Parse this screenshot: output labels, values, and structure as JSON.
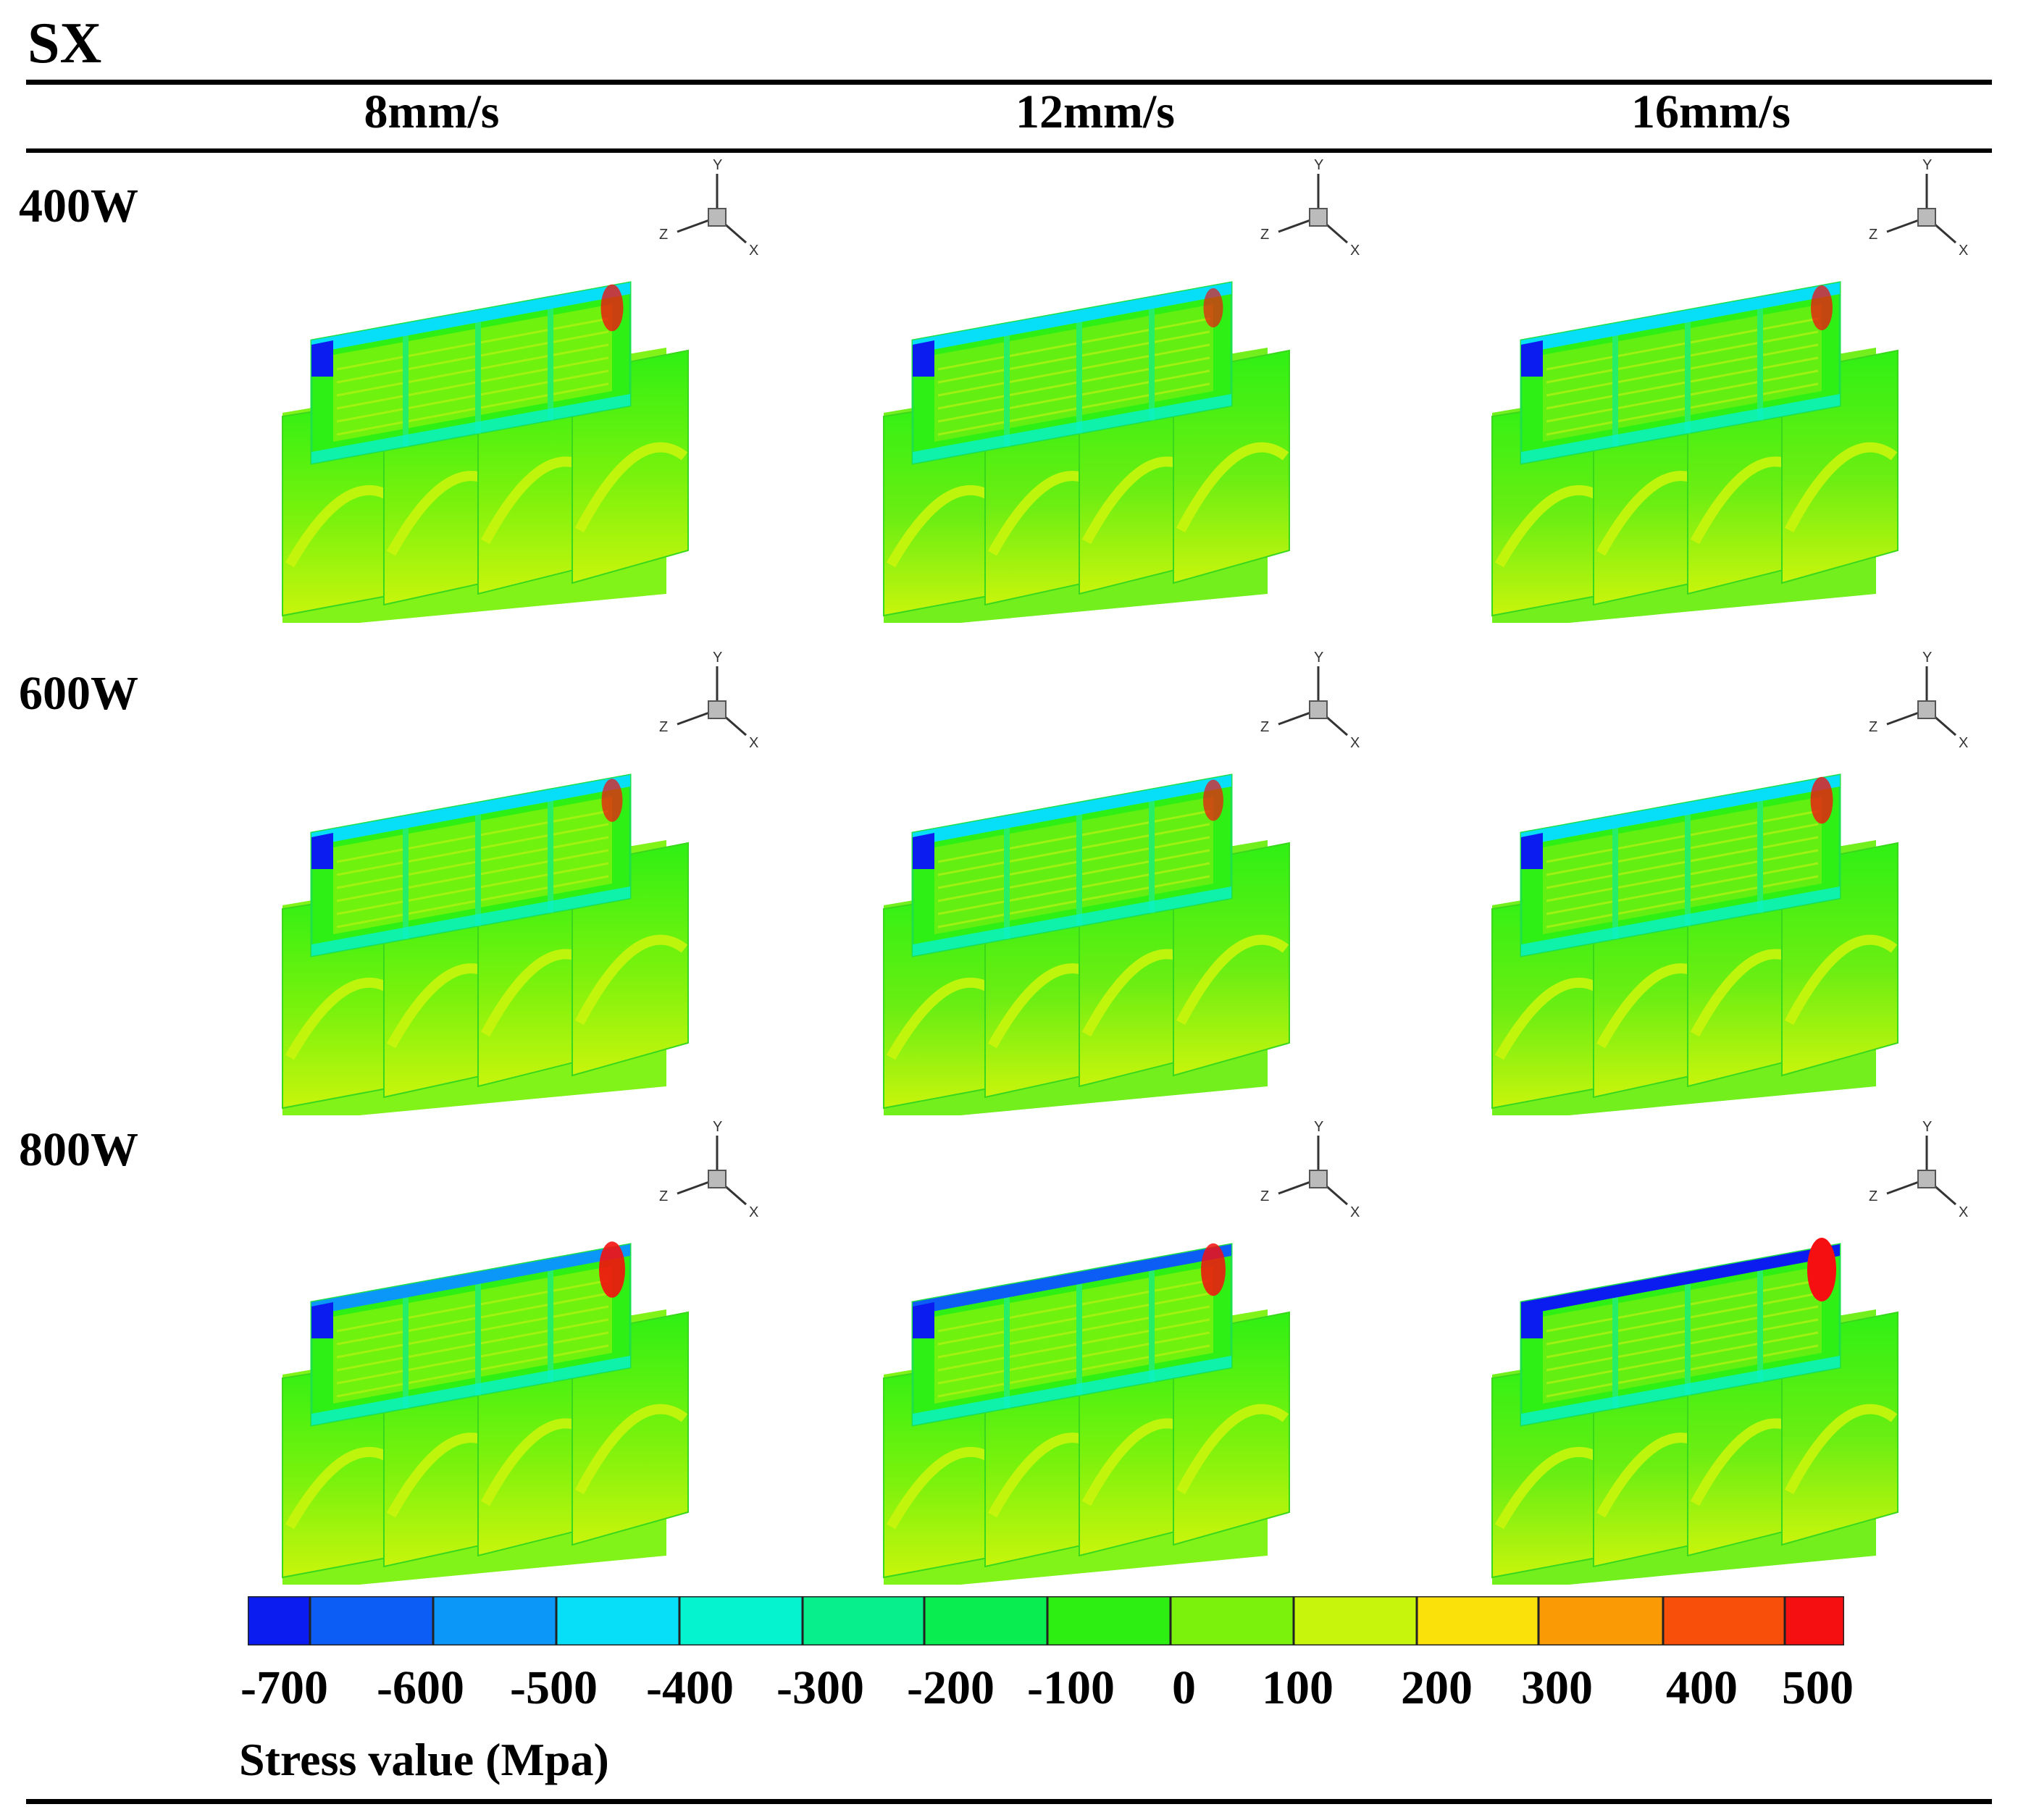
{
  "figure_title": "SX",
  "columns": [
    {
      "label": "8mm/s"
    },
    {
      "label": "12mm/s"
    },
    {
      "label": "16mm/s"
    }
  ],
  "rows": [
    {
      "label": "400W"
    },
    {
      "label": "600W"
    },
    {
      "label": "800W"
    }
  ],
  "axis_triad": {
    "x": "X",
    "y": "Y",
    "z": "Z"
  },
  "colorbar": {
    "title": "Stress value (Mpa)",
    "tick_labels": [
      "-700",
      "-600",
      "-500",
      "-400",
      "-300",
      "-200",
      "-100",
      "0",
      "100",
      "200",
      "300",
      "400",
      "500"
    ],
    "colors": [
      "#0b1cf0",
      "#0c5cf6",
      "#0a97f8",
      "#07def7",
      "#06f3cf",
      "#06ef8c",
      "#09ed50",
      "#2eef12",
      "#7af20c",
      "#c8f50c",
      "#fae109",
      "#fa9b05",
      "#f8500a",
      "#f50f10"
    ]
  },
  "cells": [
    [
      {
        "frame": "#2ff014",
        "base": "#7af20c",
        "lower": "#c8f50c",
        "top": "#07def7",
        "hot": "#f50f10",
        "cold": "#0b1cf0",
        "hot_intensity": 0.55
      },
      {
        "frame": "#2ff014",
        "base": "#6cee12",
        "lower": "#c8f50c",
        "top": "#07def7",
        "hot": "#f50f10",
        "cold": "#0b1cf0",
        "hot_intensity": 0.35
      },
      {
        "frame": "#2ff014",
        "base": "#6cee12",
        "lower": "#c8f50c",
        "top": "#07def7",
        "hot": "#f50f10",
        "cold": "#0b1cf0",
        "hot_intensity": 0.5
      }
    ],
    [
      {
        "frame": "#2ff014",
        "base": "#7af20c",
        "lower": "#c8f50c",
        "top": "#07def7",
        "hot": "#f50f10",
        "cold": "#0b1cf0",
        "hot_intensity": 0.45
      },
      {
        "frame": "#2ff014",
        "base": "#6cee12",
        "lower": "#c8f50c",
        "top": "#07def7",
        "hot": "#f50f10",
        "cold": "#0b1cf0",
        "hot_intensity": 0.4
      },
      {
        "frame": "#2ff014",
        "base": "#6cee12",
        "lower": "#c8f50c",
        "top": "#07def7",
        "hot": "#f50f10",
        "cold": "#0b1cf0",
        "hot_intensity": 0.55
      }
    ],
    [
      {
        "frame": "#2ff014",
        "base": "#7af20c",
        "lower": "#c8f50c",
        "top": "#0a97f8",
        "hot": "#f50f10",
        "cold": "#0b1cf0",
        "hot_intensity": 0.8
      },
      {
        "frame": "#2ff014",
        "base": "#7af20c",
        "lower": "#c8f50c",
        "top": "#0c5cf6",
        "hot": "#f50f10",
        "cold": "#0b1cf0",
        "hot_intensity": 0.7
      },
      {
        "frame": "#2ff014",
        "base": "#6cee12",
        "lower": "#c8f50c",
        "top": "#0b1cf0",
        "hot": "#f50f10",
        "cold": "#0b1cf0",
        "hot_intensity": 1.0
      }
    ]
  ]
}
